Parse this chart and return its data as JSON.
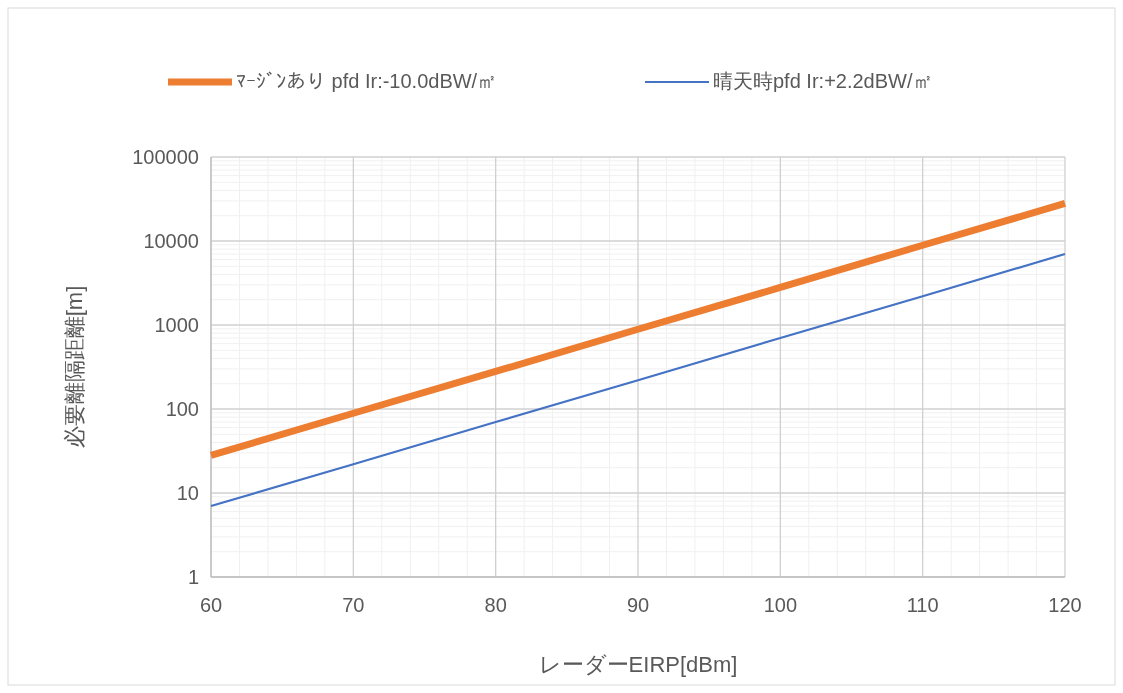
{
  "chart_data": {
    "type": "line",
    "xlabel": "レーダーEIRP[dBm]",
    "ylabel": "必要離隔距離[m]",
    "x": [
      60,
      70,
      80,
      90,
      100,
      110,
      120
    ],
    "series": [
      {
        "name": "ﾏｰｼﾞﾝあり pfd Ir:-10.0dBW/㎡",
        "color": "#ed7d31",
        "values": [
          28,
          89,
          280,
          890,
          2800,
          8900,
          28000
        ]
      },
      {
        "name": "晴天時pfd Ir:+2.2dBW/㎡",
        "color": "#4472c4",
        "values": [
          7,
          22,
          70,
          220,
          700,
          2200,
          7000
        ]
      }
    ],
    "xlim": [
      60,
      120
    ],
    "xticks": [
      60,
      70,
      80,
      90,
      100,
      110,
      120
    ],
    "ylim": [
      1,
      100000
    ],
    "yticks": [
      1,
      10,
      100,
      1000,
      10000,
      100000
    ],
    "log": "y",
    "grid": true,
    "legend": "top",
    "marker": "none",
    "line_style": "solid"
  }
}
